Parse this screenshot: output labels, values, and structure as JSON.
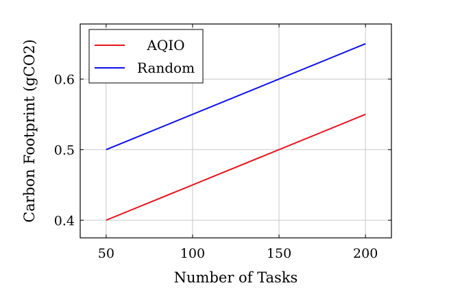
{
  "chart_data": {
    "type": "line",
    "title": "",
    "xlabel": "Number of Tasks",
    "ylabel": "Carbon Footprint (gCO2)",
    "x": [
      50,
      200
    ],
    "xlim": [
      35,
      215
    ],
    "ylim": [
      0.375,
      0.678
    ],
    "xticks": [
      50,
      100,
      150,
      200
    ],
    "yticks": [
      0.4,
      0.5,
      0.6
    ],
    "xtick_labels": [
      "50",
      "100",
      "150",
      "200"
    ],
    "ytick_labels": [
      "0.4",
      "0.5",
      "0.6"
    ],
    "grid": true,
    "legend_position": "top-left",
    "series": [
      {
        "name": "AQIO",
        "color": "#e8111b",
        "values": [
          0.4,
          0.55
        ]
      },
      {
        "name": "Random",
        "color": "#0d0df0",
        "values": [
          0.5,
          0.65
        ]
      }
    ]
  }
}
